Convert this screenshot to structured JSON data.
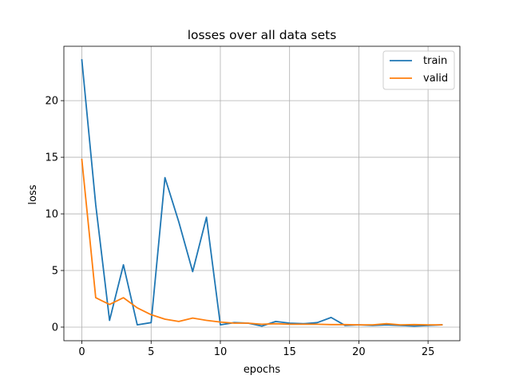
{
  "chart_data": {
    "type": "line",
    "title": "losses over all data sets",
    "xlabel": "epochs",
    "ylabel": "loss",
    "xlim": [
      -1.3,
      27.3
    ],
    "ylim": [
      -1.2,
      24.8
    ],
    "xticks": [
      0,
      5,
      10,
      15,
      20,
      25
    ],
    "yticks": [
      0,
      5,
      10,
      15,
      20
    ],
    "grid": true,
    "legend_position": "top-right",
    "x": [
      0,
      1,
      2,
      3,
      4,
      5,
      6,
      7,
      8,
      9,
      10,
      11,
      12,
      13,
      14,
      15,
      16,
      17,
      18,
      19,
      20,
      21,
      22,
      23,
      24,
      25,
      26
    ],
    "series": [
      {
        "name": "train",
        "color": "#1f77b4",
        "values": [
          23.6,
          10.8,
          0.6,
          5.5,
          0.2,
          0.4,
          13.2,
          9.3,
          4.9,
          9.7,
          0.2,
          0.4,
          0.35,
          0.1,
          0.5,
          0.35,
          0.3,
          0.4,
          0.85,
          0.15,
          0.2,
          0.15,
          0.2,
          0.15,
          0.1,
          0.15,
          0.2
        ]
      },
      {
        "name": "valid",
        "color": "#ff7f0e",
        "values": [
          14.8,
          2.6,
          2.0,
          2.6,
          1.7,
          1.1,
          0.7,
          0.5,
          0.8,
          0.6,
          0.45,
          0.35,
          0.35,
          0.25,
          0.3,
          0.25,
          0.25,
          0.25,
          0.22,
          0.22,
          0.2,
          0.2,
          0.3,
          0.2,
          0.22,
          0.2,
          0.2
        ]
      }
    ]
  }
}
